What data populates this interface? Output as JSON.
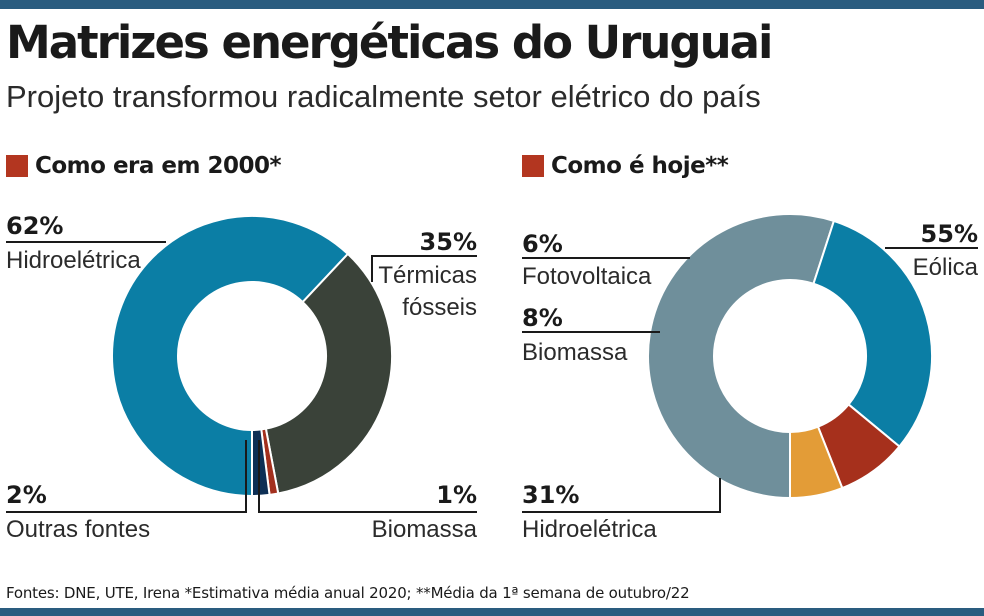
{
  "header": {
    "title": "Matrizes energéticas do Uruguai",
    "subtitle": "Projeto transformou radicalmente setor elétrico do país"
  },
  "footer": {
    "sources": "Fontes: DNE, UTE, Irena  *Estimativa média anual 2020; **Média da 1ª semana de outubro/22"
  },
  "colors": {
    "hidroeletrica": "#0b7ea5",
    "termicas_fosseis": "#3a4239",
    "biomassa_2000": "#a3301e",
    "outras_fontes": "#0d2f55",
    "eolica": "#6f8f9b",
    "fotovoltaica": "#e39c37",
    "biomassa_hoje": "#a6301c",
    "accent_square": "#b33620",
    "bars": "#2a5c7f"
  },
  "chart_data": [
    {
      "type": "pie",
      "donut": true,
      "title": "Como era em 2000*",
      "slices": [
        {
          "label": "Hidroelétrica",
          "display": "62%",
          "value": 62,
          "color_key": "hidroeletrica"
        },
        {
          "label": "Térmicas fósseis",
          "display": "35%",
          "value": 35,
          "color_key": "termicas_fosseis"
        },
        {
          "label": "Biomassa",
          "display": "1%",
          "value": 1,
          "color_key": "biomassa_2000"
        },
        {
          "label": "Outras fontes",
          "display": "2%",
          "value": 2,
          "color_key": "outras_fontes"
        }
      ]
    },
    {
      "type": "pie",
      "donut": true,
      "title": "Como é hoje**",
      "slices": [
        {
          "label": "Eólica",
          "display": "55%",
          "value": 55,
          "color_key": "eolica"
        },
        {
          "label": "Hidroelétrica",
          "display": "31%",
          "value": 31,
          "color_key": "hidroeletrica"
        },
        {
          "label": "Biomassa",
          "display": "8%",
          "value": 8,
          "color_key": "biomassa_hoje"
        },
        {
          "label": "Fotovoltaica",
          "display": "6%",
          "value": 6,
          "color_key": "fotovoltaica"
        }
      ]
    }
  ]
}
